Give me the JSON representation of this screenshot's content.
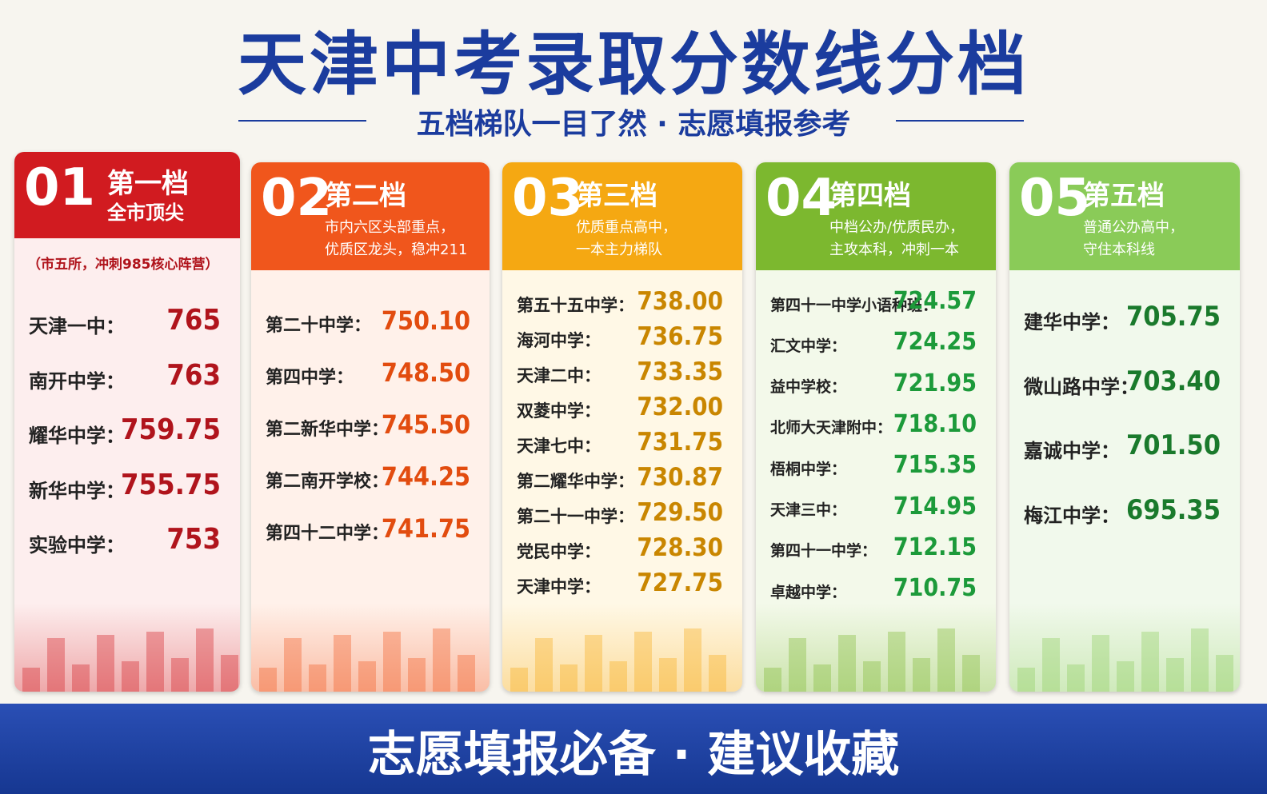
{
  "header": {
    "title": "天津中考录取分数线分档",
    "subtitle": "五档梯队一目了然 · 志愿填报参考"
  },
  "tiers": [
    {
      "number": "01",
      "name": "第一档",
      "desc": [
        "全市顶尖"
      ],
      "note": "（市五所，冲刺985核心阵营）",
      "schools": [
        {
          "name": "天津一中：",
          "score": "765"
        },
        {
          "name": "南开中学：",
          "score": "763"
        },
        {
          "name": "耀华中学：",
          "score": "759.75"
        },
        {
          "name": "新华中学：",
          "score": "755.75"
        },
        {
          "name": "实验中学：",
          "score": "753"
        }
      ]
    },
    {
      "number": "02",
      "name": "第二档",
      "desc": [
        "市内六区头部重点，",
        "优质区龙头，稳冲211"
      ],
      "schools": [
        {
          "name": "第二十中学：",
          "score": "750.10"
        },
        {
          "name": "第四中学：",
          "score": "748.50"
        },
        {
          "name": "第二新华中学：",
          "score": "745.50"
        },
        {
          "name": "第二南开学校：",
          "score": "744.25"
        },
        {
          "name": "第四十二中学：",
          "score": "741.75"
        }
      ]
    },
    {
      "number": "03",
      "name": "第三档",
      "desc": [
        "优质重点高中，",
        "一本主力梯队"
      ],
      "schools": [
        {
          "name": "第五十五中学：",
          "score": "738.00"
        },
        {
          "name": "海河中学：",
          "score": "736.75"
        },
        {
          "name": "天津二中：",
          "score": "733.35"
        },
        {
          "name": "双菱中学：",
          "score": "732.00"
        },
        {
          "name": "天津七中：",
          "score": "731.75"
        },
        {
          "name": "第二耀华中学：",
          "score": "730.87"
        },
        {
          "name": "第二十一中学：",
          "score": "729.50"
        },
        {
          "name": "党民中学：",
          "score": "728.30"
        },
        {
          "name": "天津中学：",
          "score": "727.75"
        }
      ]
    },
    {
      "number": "04",
      "name": "第四档",
      "desc": [
        "中档公办/优质民办，",
        "主攻本科，冲刺一本"
      ],
      "schools": [
        {
          "name": "第四十一中学小语种班：",
          "score": "724.57"
        },
        {
          "name": "汇文中学：",
          "score": "724.25"
        },
        {
          "name": "益中学校：",
          "score": "721.95"
        },
        {
          "name": "北师大天津附中：",
          "score": "718.10"
        },
        {
          "name": "梧桐中学：",
          "score": "715.35"
        },
        {
          "name": "天津三中：",
          "score": "714.95"
        },
        {
          "name": "第四十一中学：",
          "score": "712.15"
        },
        {
          "name": "卓越中学：",
          "score": "710.75"
        }
      ]
    },
    {
      "number": "05",
      "name": "第五档",
      "desc": [
        "普通公办高中，",
        "守住本科线"
      ],
      "schools": [
        {
          "name": "建华中学：",
          "score": "705.75"
        },
        {
          "name": "微山路中学：",
          "score": "703.40"
        },
        {
          "name": "嘉诚中学：",
          "score": "701.50"
        },
        {
          "name": "梅江中学：",
          "score": "695.35"
        }
      ]
    }
  ],
  "footer": {
    "text": "志愿填报必备 · 建议收藏"
  }
}
